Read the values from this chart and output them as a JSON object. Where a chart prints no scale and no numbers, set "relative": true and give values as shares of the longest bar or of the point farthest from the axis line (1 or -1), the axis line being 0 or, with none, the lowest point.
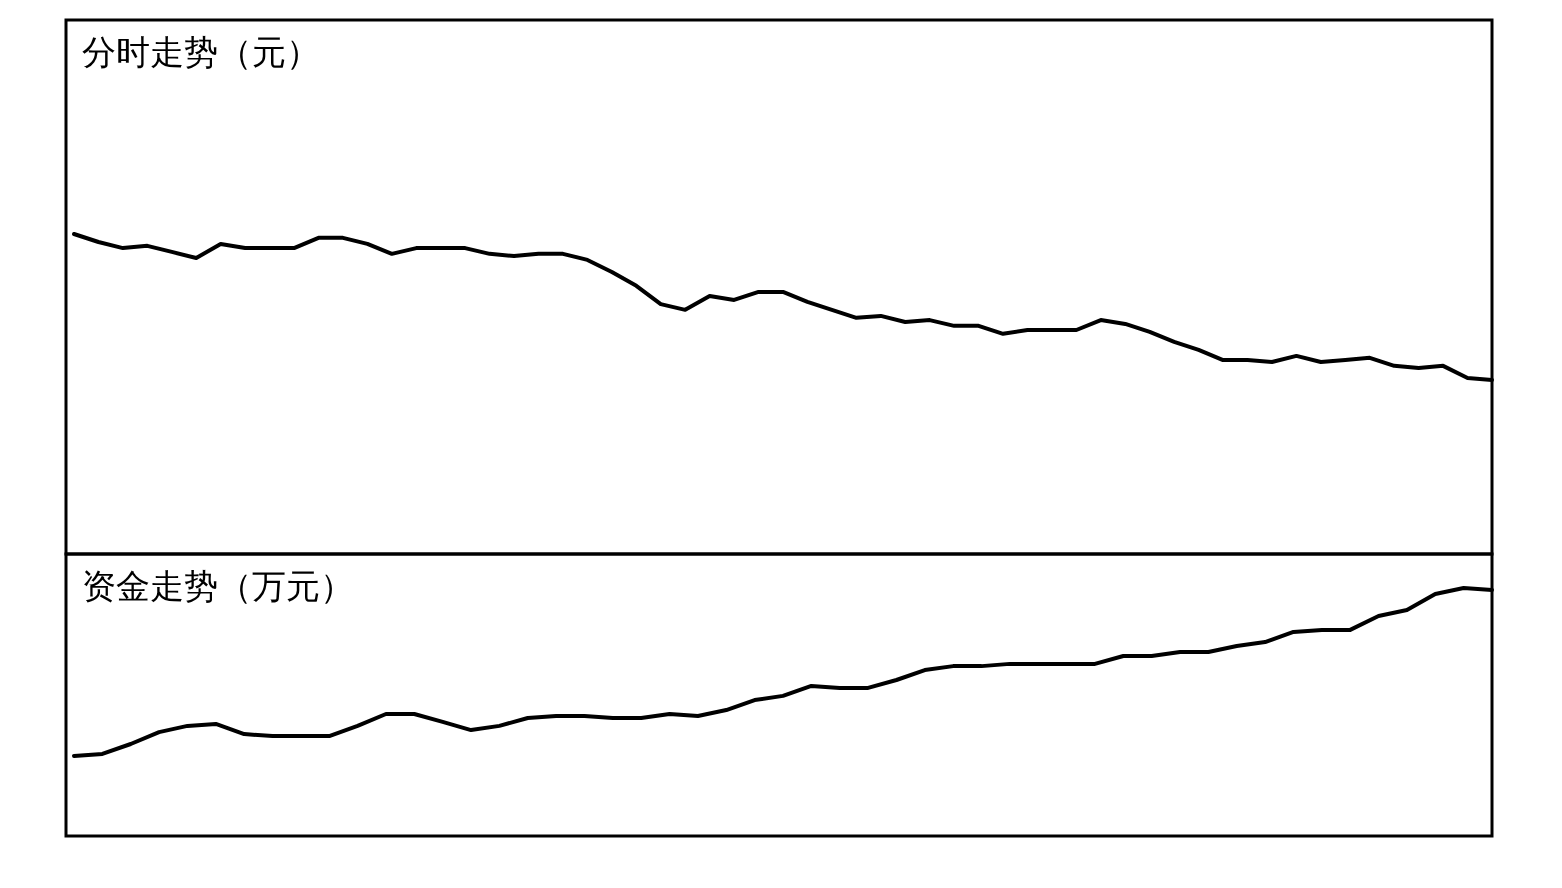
{
  "chart_data": [
    {
      "type": "line",
      "title": "分时走势（元）",
      "relative": true,
      "color": "#000000",
      "categories": [
        null,
        null,
        null,
        null,
        null,
        null,
        null,
        null,
        null,
        null,
        null,
        null,
        null,
        null,
        null,
        null,
        null,
        null,
        null,
        null,
        null,
        null,
        null,
        null,
        null,
        null,
        null,
        null,
        null,
        null,
        null,
        null,
        null,
        null,
        null,
        null,
        null,
        null,
        null,
        null,
        null,
        null,
        null,
        null,
        null,
        null,
        null,
        null,
        null,
        null,
        null,
        null,
        null,
        null,
        null,
        null,
        null,
        null,
        null
      ],
      "values": [
        1.0,
        0.975,
        0.956,
        0.963,
        0.944,
        0.925,
        0.969,
        0.956,
        0.956,
        0.956,
        0.988,
        0.988,
        0.969,
        0.938,
        0.956,
        0.956,
        0.956,
        0.938,
        0.931,
        0.938,
        0.938,
        0.919,
        0.881,
        0.838,
        0.781,
        0.763,
        0.806,
        0.794,
        0.819,
        0.819,
        0.788,
        0.763,
        0.738,
        0.744,
        0.725,
        0.731,
        0.713,
        0.713,
        0.688,
        0.7,
        0.7,
        0.7,
        0.731,
        0.719,
        0.694,
        0.663,
        0.638,
        0.606,
        0.606,
        0.6,
        0.619,
        0.6,
        0.606,
        0.613,
        0.588,
        0.581,
        0.588,
        0.55,
        0.544
      ]
    },
    {
      "type": "line",
      "title": "资金走势（万元）",
      "relative": true,
      "color": "#000000",
      "categories": [
        null,
        null,
        null,
        null,
        null,
        null,
        null,
        null,
        null,
        null,
        null,
        null,
        null,
        null,
        null,
        null,
        null,
        null,
        null,
        null,
        null,
        null,
        null,
        null,
        null,
        null,
        null,
        null,
        null,
        null,
        null,
        null,
        null,
        null,
        null,
        null,
        null,
        null,
        null,
        null,
        null,
        null,
        null,
        null,
        null,
        null,
        null,
        null,
        null,
        null,
        null
      ],
      "values": [
        0.323,
        0.331,
        0.371,
        0.419,
        0.444,
        0.452,
        0.411,
        0.403,
        0.403,
        0.403,
        0.444,
        0.492,
        0.492,
        0.46,
        0.427,
        0.444,
        0.476,
        0.484,
        0.484,
        0.476,
        0.476,
        0.492,
        0.484,
        0.508,
        0.548,
        0.565,
        0.605,
        0.597,
        0.597,
        0.629,
        0.669,
        0.685,
        0.685,
        0.694,
        0.694,
        0.694,
        0.694,
        0.726,
        0.726,
        0.742,
        0.742,
        0.766,
        0.782,
        0.823,
        0.831,
        0.831,
        0.887,
        0.911,
        0.976,
        1.0,
        0.992
      ]
    }
  ]
}
